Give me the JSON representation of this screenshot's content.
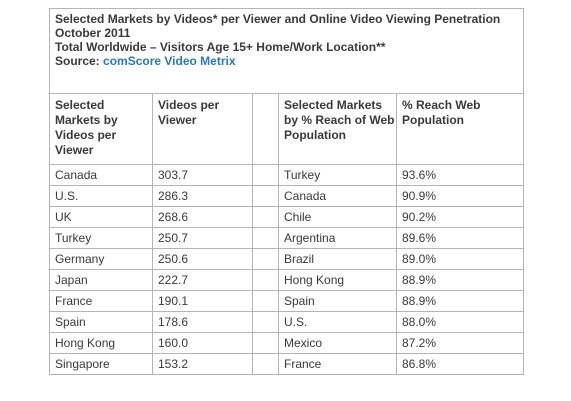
{
  "title": {
    "line1": "Selected Markets by Videos* per Viewer and Online Video Viewing Penetration",
    "line2": "October 2011",
    "line3": "Total Worldwide – Visitors Age 15+ Home/Work Location**",
    "source_label": "Source: ",
    "source_name": "comScore Video Metrix"
  },
  "headers": [
    "Selected Markets by Videos per Viewer",
    "Videos per Viewer",
    "Selected Markets by % Reach of Web Population",
    "% Reach Web Population"
  ],
  "rows": [
    {
      "market_a": "Canada",
      "videos": "303.7",
      "market_b": "Turkey",
      "reach": "93.6%"
    },
    {
      "market_a": "U.S.",
      "videos": "286.3",
      "market_b": "Canada",
      "reach": "90.9%"
    },
    {
      "market_a": "UK",
      "videos": "268.6",
      "market_b": "Chile",
      "reach": "90.2%"
    },
    {
      "market_a": "Turkey",
      "videos": "250.7",
      "market_b": "Argentina",
      "reach": "89.6%"
    },
    {
      "market_a": "Germany",
      "videos": "250.6",
      "market_b": "Brazil",
      "reach": "89.0%"
    },
    {
      "market_a": "Japan",
      "videos": "222.7",
      "market_b": "Hong Kong",
      "reach": "88.9%"
    },
    {
      "market_a": "France",
      "videos": "190.1",
      "market_b": "Spain",
      "reach": "88.9%"
    },
    {
      "market_a": "Spain",
      "videos": "178.6",
      "market_b": "U.S.",
      "reach": "88.0%"
    },
    {
      "market_a": "Hong Kong",
      "videos": "160.0",
      "market_b": "Mexico",
      "reach": "87.2%"
    },
    {
      "market_a": "Singapore",
      "videos": "153.2",
      "market_b": "France",
      "reach": "86.8%"
    }
  ]
}
